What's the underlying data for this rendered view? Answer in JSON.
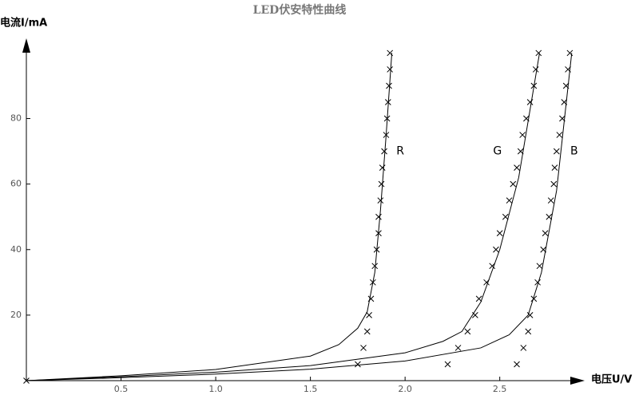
{
  "chart_data": {
    "type": "scatter",
    "title": "LED伏安特性曲线",
    "xlabel": "电压U/V",
    "ylabel": "电流I/mA",
    "xlim": [
      0,
      2.94
    ],
    "ylim": [
      0,
      104
    ],
    "xticks": [
      0.5,
      {
        "value": 1.0,
        "label": "1.0"
      },
      1.5,
      {
        "value": 2.0,
        "label": "2.0"
      },
      2.5
    ],
    "yticks": [
      20,
      40,
      60,
      80
    ],
    "series": [
      {
        "name": "R",
        "color": "#000000",
        "x": [
          1.75,
          1.78,
          1.8,
          1.81,
          1.82,
          1.83,
          1.84,
          1.85,
          1.86,
          1.86,
          1.87,
          1.875,
          1.88,
          1.89,
          1.9,
          1.905,
          1.91,
          1.915,
          1.92,
          1.92
        ],
        "values": [
          5,
          10,
          15,
          20,
          25,
          30,
          35,
          40,
          45,
          50,
          55,
          60,
          65,
          70,
          75,
          80,
          85,
          90,
          95,
          100
        ],
        "curve_x": [
          0,
          0.5,
          1.0,
          1.5,
          1.65,
          1.75,
          1.8,
          1.84,
          1.87,
          1.9,
          1.93
        ],
        "curve_y": [
          0,
          1.5,
          3.4,
          7.5,
          11,
          16,
          21,
          33,
          52,
          75,
          100
        ]
      },
      {
        "name": "G",
        "color": "#000000",
        "x": [
          2.225,
          2.28,
          2.33,
          2.37,
          2.39,
          2.43,
          2.46,
          2.48,
          2.5,
          2.53,
          2.55,
          2.57,
          2.59,
          2.61,
          2.62,
          2.64,
          2.66,
          2.68,
          2.69,
          2.705
        ],
        "values": [
          5,
          10,
          15,
          20,
          25,
          30,
          35,
          40,
          45,
          50,
          55,
          60,
          65,
          70,
          75,
          80,
          85,
          90,
          95,
          100
        ],
        "curve_x": [
          0,
          0.5,
          1.0,
          1.5,
          2.0,
          2.2,
          2.3,
          2.4,
          2.5,
          2.6,
          2.71
        ],
        "curve_y": [
          0,
          1.2,
          2.6,
          4.6,
          8.5,
          12,
          15,
          24,
          40,
          62,
          100
        ]
      },
      {
        "name": "B",
        "color": "#000000",
        "x": [
          2.59,
          2.625,
          2.65,
          2.66,
          2.68,
          2.7,
          2.71,
          2.73,
          2.74,
          2.76,
          2.77,
          2.785,
          2.79,
          2.8,
          2.815,
          2.83,
          2.84,
          2.85,
          2.86,
          2.87
        ],
        "values": [
          5,
          10,
          15,
          20,
          25,
          30,
          35,
          40,
          45,
          50,
          55,
          60,
          65,
          70,
          75,
          80,
          85,
          90,
          95,
          100
        ],
        "curve_x": [
          0,
          0.5,
          1.0,
          1.5,
          2.0,
          2.4,
          2.55,
          2.65,
          2.72,
          2.8,
          2.88
        ],
        "curve_y": [
          0,
          0.9,
          2,
          3.5,
          6,
          10,
          14,
          20,
          33,
          58,
          100
        ]
      },
      {
        "color": "#000000",
        "x": [
          0
        ],
        "values": [
          0
        ]
      }
    ]
  }
}
